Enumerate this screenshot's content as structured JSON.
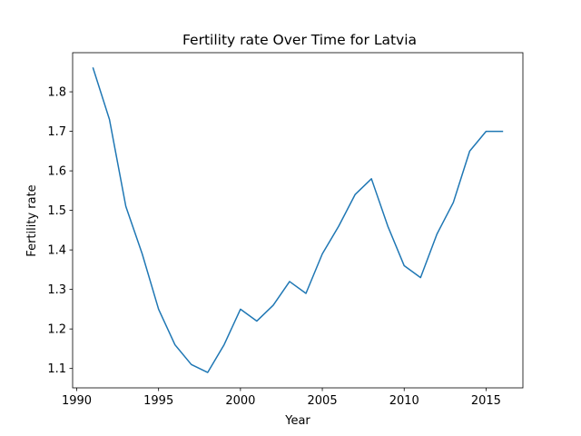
{
  "chart_data": {
    "type": "line",
    "title": "Fertility rate Over Time for Latvia",
    "xlabel": "Year",
    "ylabel": "Fertility rate",
    "xlim": [
      1989.75,
      2017.25
    ],
    "ylim": [
      1.051,
      1.899
    ],
    "xticks": [
      1990,
      1995,
      2000,
      2005,
      2010,
      2015
    ],
    "yticks": [
      1.1,
      1.2,
      1.3,
      1.4,
      1.5,
      1.6,
      1.7,
      1.8
    ],
    "grid": false,
    "line_color": "#1f77b4",
    "x": [
      1991,
      1992,
      1993,
      1994,
      1995,
      1996,
      1997,
      1998,
      1999,
      2000,
      2001,
      2002,
      2003,
      2004,
      2005,
      2006,
      2007,
      2008,
      2009,
      2010,
      2011,
      2012,
      2013,
      2014,
      2015,
      2016
    ],
    "series": [
      {
        "values": [
          1.86,
          1.73,
          1.51,
          1.39,
          1.25,
          1.16,
          1.11,
          1.09,
          1.16,
          1.25,
          1.22,
          1.26,
          1.32,
          1.29,
          1.39,
          1.46,
          1.54,
          1.58,
          1.46,
          1.36,
          1.33,
          1.44,
          1.52,
          1.65,
          1.7,
          1.7
        ]
      }
    ]
  }
}
